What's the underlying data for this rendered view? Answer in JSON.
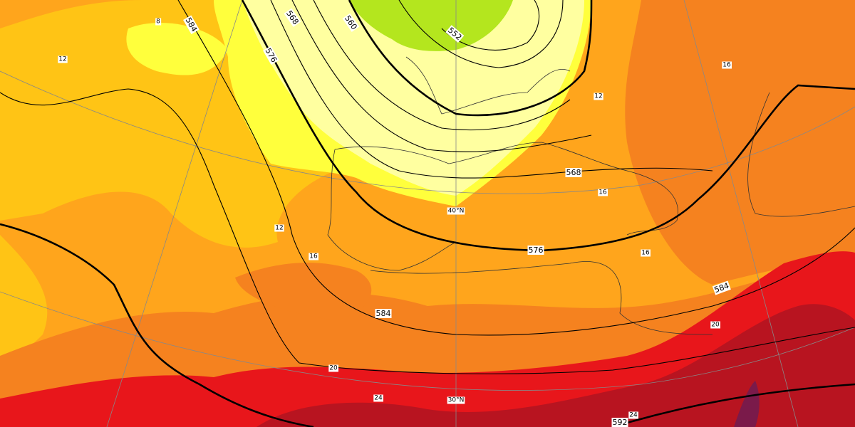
{
  "contour_labels": [
    "584",
    "576",
    "568",
    "560",
    "552",
    "568",
    "576",
    "584",
    "584",
    "592"
  ],
  "temperature_labels": [
    "8",
    "12",
    "12",
    "16",
    "16",
    "12",
    "16",
    "16",
    "20",
    "20",
    "24",
    "24"
  ],
  "latitude_labels": [
    "40°N",
    "30°N"
  ]
}
